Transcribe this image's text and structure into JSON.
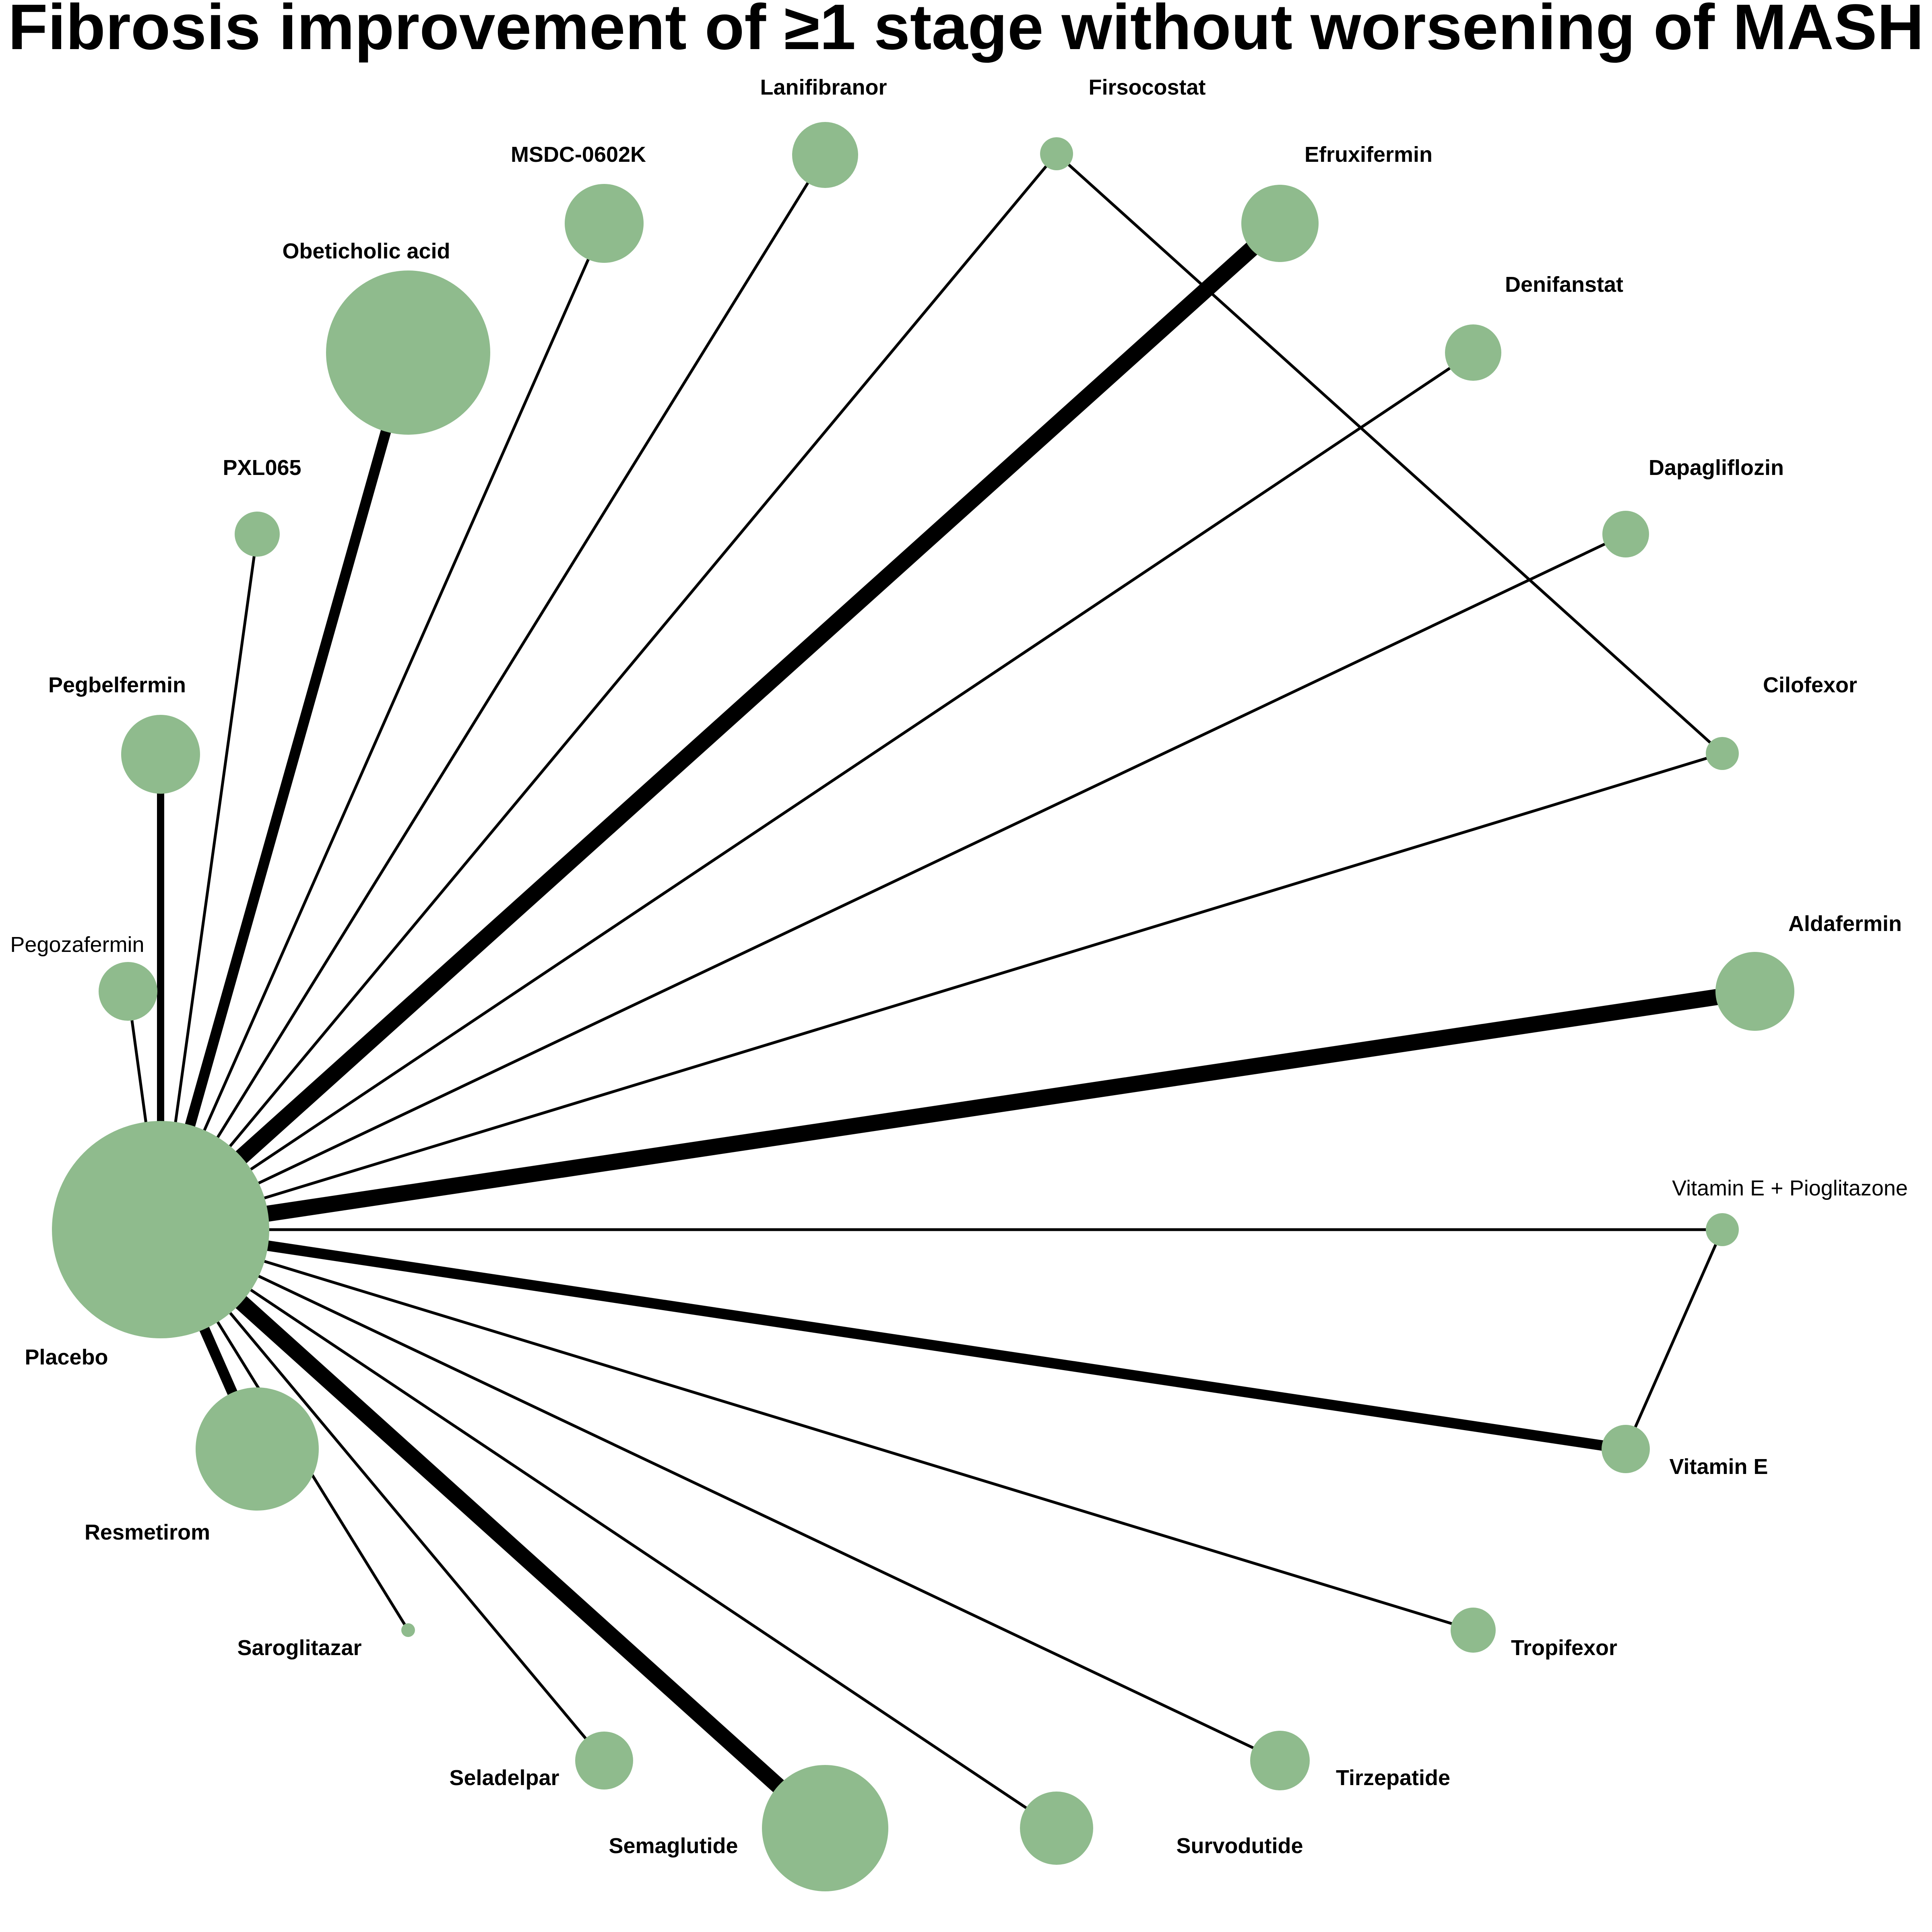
{
  "title": "Fibrosis improvement of ≥1 stage without worsening of MASH",
  "colors": {
    "node": "#8fbb8d",
    "edge": "#000000",
    "background": "#ffffff"
  },
  "nodes": [
    {
      "id": "placebo",
      "label": "Placebo",
      "bold": true
    },
    {
      "id": "pegozafermin",
      "label": "Pegozafermin",
      "bold": false
    },
    {
      "id": "pegbelfermin",
      "label": "Pegbelfermin",
      "bold": true
    },
    {
      "id": "pxl065",
      "label": "PXL065",
      "bold": true
    },
    {
      "id": "obeticholic-acid",
      "label": "Obeticholic acid",
      "bold": true
    },
    {
      "id": "msdc-0602k",
      "label": "MSDC-0602K",
      "bold": true
    },
    {
      "id": "lanifibranor",
      "label": "Lanifibranor",
      "bold": true
    },
    {
      "id": "firsocostat",
      "label": "Firsocostat",
      "bold": true
    },
    {
      "id": "efruxifermin",
      "label": "Efruxifermin",
      "bold": true
    },
    {
      "id": "denifanstat",
      "label": "Denifanstat",
      "bold": true
    },
    {
      "id": "dapagliflozin",
      "label": "Dapagliflozin",
      "bold": true
    },
    {
      "id": "cilofexor",
      "label": "Cilofexor",
      "bold": true
    },
    {
      "id": "aldafermin",
      "label": "Aldafermin",
      "bold": true
    },
    {
      "id": "vitamin-e-pioglitazone",
      "label": "Vitamin E + Pioglitazone",
      "bold": false
    },
    {
      "id": "vitamin-e",
      "label": "Vitamin E",
      "bold": true
    },
    {
      "id": "tropifexor",
      "label": "Tropifexor",
      "bold": true
    },
    {
      "id": "tirzepatide",
      "label": "Tirzepatide",
      "bold": true
    },
    {
      "id": "survodutide",
      "label": "Survodutide",
      "bold": true
    },
    {
      "id": "semaglutide",
      "label": "Semaglutide",
      "bold": true
    },
    {
      "id": "seladelpar",
      "label": "Seladelpar",
      "bold": true
    },
    {
      "id": "saroglitazar",
      "label": "Saroglitazar",
      "bold": true
    },
    {
      "id": "resmetirom",
      "label": "Resmetirom",
      "bold": true
    }
  ],
  "edges": [
    {
      "from": "placebo",
      "to": "pegozafermin",
      "weight": 1
    },
    {
      "from": "placebo",
      "to": "pegbelfermin",
      "weight": 2
    },
    {
      "from": "placebo",
      "to": "pxl065",
      "weight": 1
    },
    {
      "from": "placebo",
      "to": "obeticholic-acid",
      "weight": 3
    },
    {
      "from": "placebo",
      "to": "msdc-0602k",
      "weight": 1
    },
    {
      "from": "placebo",
      "to": "lanifibranor",
      "weight": 1
    },
    {
      "from": "placebo",
      "to": "firsocostat",
      "weight": 1
    },
    {
      "from": "placebo",
      "to": "efruxifermin",
      "weight": 4
    },
    {
      "from": "placebo",
      "to": "denifanstat",
      "weight": 1
    },
    {
      "from": "placebo",
      "to": "dapagliflozin",
      "weight": 1
    },
    {
      "from": "placebo",
      "to": "cilofexor",
      "weight": 1
    },
    {
      "from": "placebo",
      "to": "aldafermin",
      "weight": 4
    },
    {
      "from": "placebo",
      "to": "vitamin-e-pioglitazone",
      "weight": 1
    },
    {
      "from": "placebo",
      "to": "vitamin-e",
      "weight": 3
    },
    {
      "from": "placebo",
      "to": "tropifexor",
      "weight": 1
    },
    {
      "from": "placebo",
      "to": "tirzepatide",
      "weight": 1
    },
    {
      "from": "placebo",
      "to": "survodutide",
      "weight": 1
    },
    {
      "from": "placebo",
      "to": "semaglutide",
      "weight": 4
    },
    {
      "from": "placebo",
      "to": "seladelpar",
      "weight": 1
    },
    {
      "from": "placebo",
      "to": "saroglitazar",
      "weight": 1
    },
    {
      "from": "placebo",
      "to": "resmetirom",
      "weight": 3
    },
    {
      "from": "firsocostat",
      "to": "cilofexor",
      "weight": 1
    },
    {
      "from": "vitamin-e-pioglitazone",
      "to": "vitamin-e",
      "weight": 1
    }
  ]
}
